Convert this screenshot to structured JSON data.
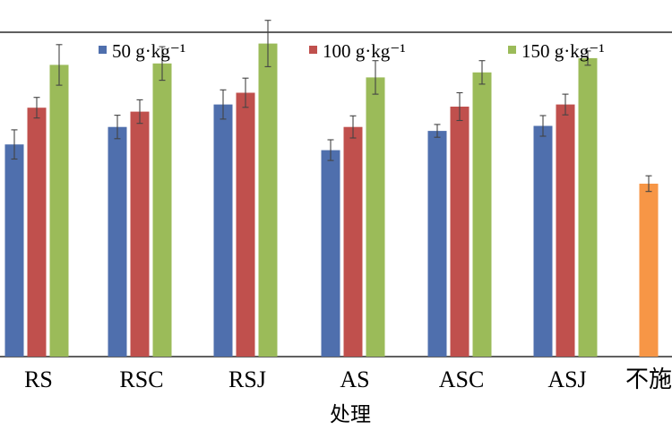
{
  "chart_data": {
    "type": "bar",
    "xlabel": "处理",
    "categories": [
      "RS",
      "RSC",
      "RSJ",
      "AS",
      "ASC",
      "ASJ",
      "不施"
    ],
    "ylim": [
      0,
      100
    ],
    "grid": false,
    "legend_position": "top",
    "series": [
      {
        "name": "50 g·kg⁻¹",
        "color": "#4f6fad",
        "values": [
          59.5,
          64.4,
          70.7,
          57.9,
          63.3,
          64.7,
          null
        ],
        "errors": [
          4.1,
          3.3,
          4.1,
          2.9,
          1.8,
          2.9,
          null
        ]
      },
      {
        "name": "100 g·kg⁻¹",
        "color": "#c0504d",
        "values": [
          69.8,
          68.7,
          74.0,
          64.4,
          70.1,
          70.7,
          null
        ],
        "errors": [
          2.9,
          3.3,
          4.1,
          3.1,
          3.9,
          2.9,
          null
        ]
      },
      {
        "name": "150 g·kg⁻¹",
        "color": "#9bbb59",
        "values": [
          81.8,
          82.2,
          87.8,
          78.3,
          79.7,
          83.7,
          null
        ],
        "errors": [
          5.7,
          4.7,
          6.5,
          4.7,
          3.3,
          2.0,
          null
        ]
      },
      {
        "name": "",
        "color": "#f79646",
        "values": [
          null,
          null,
          null,
          null,
          null,
          null,
          48.5
        ],
        "errors": [
          null,
          null,
          null,
          null,
          null,
          null,
          2.2
        ]
      }
    ]
  }
}
